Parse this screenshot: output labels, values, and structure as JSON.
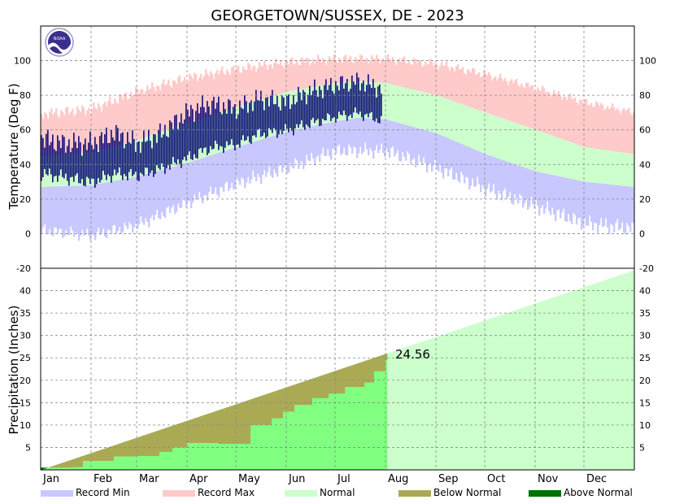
{
  "chart_data": [
    {
      "type": "area",
      "panel": "temperature",
      "title": "GEORGETOWN/SUSSEX, DE - 2023",
      "ylabel": "Temperature (Deg F)",
      "ylim": [
        -20,
        120
      ],
      "yticks": [
        -20,
        0,
        20,
        40,
        60,
        80,
        100
      ],
      "grid": true,
      "colors": {
        "record": "#c8c8ff",
        "record_max": "#ffcaca",
        "normal": "#ccffcc",
        "observed": "#000070"
      },
      "normal_high_anchors": {
        "day": [
          1,
          32,
          60,
          91,
          121,
          152,
          182,
          196,
          213,
          244,
          274,
          305,
          335,
          365
        ],
        "value": [
          45,
          47,
          54,
          64,
          73,
          82,
          87,
          88,
          87,
          80,
          70,
          60,
          50,
          46
        ]
      },
      "normal_low_anchors": {
        "day": [
          1,
          32,
          60,
          91,
          121,
          152,
          182,
          196,
          213,
          244,
          274,
          305,
          335,
          365
        ],
        "value": [
          27,
          28,
          33,
          41,
          50,
          59,
          65,
          67,
          66,
          58,
          46,
          36,
          30,
          27
        ]
      },
      "record_max_anchors": {
        "day": [
          1,
          32,
          60,
          91,
          121,
          152,
          182,
          213,
          244,
          274,
          305,
          335,
          365
        ],
        "value": [
          69,
          72,
          82,
          90,
          95,
          99,
          101,
          101,
          98,
          92,
          84,
          76,
          70
        ]
      },
      "record_min_anchors": {
        "day": [
          1,
          32,
          60,
          91,
          121,
          152,
          182,
          213,
          244,
          274,
          305,
          335,
          365
        ],
        "value": [
          2,
          -1,
          5,
          18,
          29,
          38,
          48,
          48,
          38,
          26,
          16,
          6,
          3
        ]
      },
      "observed_high_anchors": {
        "day": [
          1,
          15,
          32,
          46,
          60,
          75,
          91,
          105,
          121,
          135,
          152,
          166,
          182,
          196,
          210
        ],
        "value": [
          55,
          52,
          52,
          58,
          52,
          58,
          70,
          75,
          72,
          78,
          76,
          82,
          86,
          88,
          84
        ]
      },
      "observed_low_anchors": {
        "day": [
          1,
          15,
          32,
          46,
          60,
          75,
          91,
          105,
          121,
          135,
          152,
          166,
          182,
          196,
          210
        ],
        "value": [
          35,
          33,
          30,
          35,
          34,
          38,
          44,
          50,
          52,
          58,
          60,
          64,
          68,
          70,
          66
        ]
      },
      "observed_last_day": 210
    },
    {
      "type": "area",
      "panel": "precipitation",
      "ylabel": "Precipitation (Inches)",
      "ylim": [
        0,
        45
      ],
      "yticks": [
        5,
        10,
        15,
        20,
        25,
        30,
        35,
        40
      ],
      "grid": true,
      "annotation": "24.56",
      "colors": {
        "normal": "#ccffcc",
        "observed": "#80ff80",
        "below_normal": "#aaaa55",
        "above_normal": "#007000"
      },
      "normal_cumulative": {
        "day": [
          1,
          365
        ],
        "value": [
          0,
          44.5
        ]
      },
      "observed_cumulative": {
        "day": [
          1,
          21,
          27,
          46,
          60,
          74,
          82,
          91,
          110,
          130,
          143,
          150,
          157,
          168,
          178,
          188,
          200,
          206,
          213
        ],
        "value": [
          0.5,
          0.6,
          2.0,
          3.0,
          3.1,
          4.0,
          5.0,
          6.0,
          5.8,
          10.0,
          11.5,
          13.0,
          14.5,
          16.0,
          17.0,
          18.5,
          19.5,
          22.0,
          24.56
        ]
      },
      "observed_last_day": 213
    }
  ],
  "months": [
    "Jan",
    "Feb",
    "Mar",
    "Apr",
    "May",
    "Jun",
    "Jul",
    "Aug",
    "Sep",
    "Oct",
    "Nov",
    "Dec"
  ],
  "legend": [
    {
      "label": "Record Min",
      "color": "#c8c8ff"
    },
    {
      "label": "Record Max",
      "color": "#ffcaca"
    },
    {
      "label": "Normal",
      "color": "#ccffcc"
    },
    {
      "label": "Below Normal",
      "color": "#aaaa55"
    },
    {
      "label": "Above Normal",
      "color": "#007000"
    }
  ],
  "logo": {
    "text": "NOAA",
    "icon": "noaa-logo-icon"
  }
}
